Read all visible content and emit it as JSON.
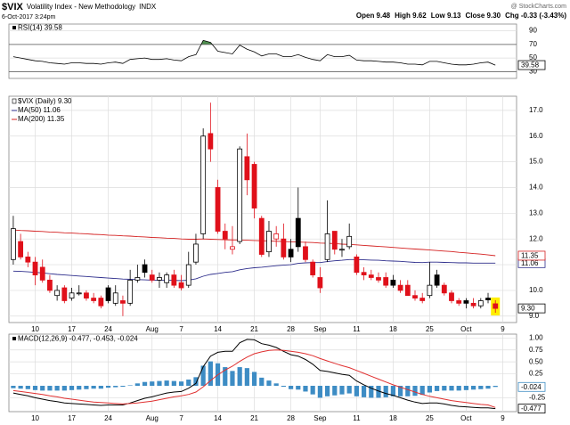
{
  "header": {
    "symbol": "$VIX",
    "name": "Volatility Index - New Methodology",
    "exchange": "INDX",
    "timestamp": "6-Oct-2017 3:24pm",
    "quote": [
      "Open 9.48",
      "High 9.62",
      "Low 9.13",
      "Close 9.30",
      "Chg -0.33 (-3.43%)"
    ],
    "credit": "@ StockCharts.com"
  },
  "chart_data": [
    {
      "type": "rsi",
      "title": "RSI(14) 39.58",
      "color": "#000000",
      "fill_color": "#4f8f4f",
      "overbought": 70,
      "oversold": 30,
      "last_label": "39.58",
      "values": [
        52,
        50,
        48,
        46,
        45,
        43,
        42,
        41,
        43,
        43,
        42,
        42,
        41,
        43,
        44,
        42,
        48,
        49,
        50,
        48,
        48,
        49,
        47,
        46,
        52,
        55,
        76,
        73,
        60,
        58,
        56,
        69,
        63,
        59,
        53,
        56,
        56,
        52,
        52,
        55,
        51,
        48,
        46,
        55,
        52,
        52,
        54,
        47,
        46,
        46,
        45,
        44,
        44,
        43,
        41,
        41,
        40,
        45,
        45,
        43,
        41,
        40,
        40,
        41,
        43,
        44,
        39.58
      ],
      "ylim": [
        20,
        100
      ],
      "yticks": [
        30,
        50,
        70,
        90
      ],
      "xlim": [
        -0.6,
        68.9
      ],
      "grid": true
    },
    {
      "type": "candlestick",
      "name": "$VIX (Daily) 9.30",
      "up_color": "#000000",
      "down_color": "#e0101a",
      "last_label": "9.30",
      "open": [
        11.2,
        11.9,
        11.3,
        11.1,
        10.9,
        10.4,
        9.8,
        10.1,
        9.7,
        9.9,
        9.9,
        9.7,
        9.7,
        10.1,
        9.5,
        9.6,
        9.5,
        10.4,
        11.0,
        10.6,
        10.4,
        10.3,
        10.6,
        10.3,
        10.2,
        11.1,
        12.2,
        16.1,
        14.0,
        12.3,
        11.6,
        11.9,
        15.2,
        14.9,
        12.8,
        11.5,
        12.0,
        12.0,
        11.6,
        12.8,
        11.7,
        11.1,
        10.5,
        11.2,
        12.3,
        11.6,
        11.7,
        11.3,
        10.7,
        10.6,
        10.5,
        10.5,
        10.4,
        10.2,
        10.2,
        9.8,
        9.7,
        9.8,
        10.6,
        10.2,
        9.9,
        9.6,
        9.6,
        9.5,
        9.4,
        9.7,
        9.48
      ],
      "high": [
        12.9,
        12.2,
        11.5,
        11.3,
        11.2,
        10.6,
        10.2,
        10.2,
        10.1,
        10.2,
        10.0,
        9.9,
        9.8,
        10.2,
        10.2,
        9.8,
        10.8,
        11.0,
        11.2,
        10.8,
        10.7,
        10.7,
        10.8,
        10.6,
        11.5,
        12.2,
        16.3,
        17.3,
        14.3,
        12.6,
        12.5,
        15.6,
        16.1,
        15.0,
        12.9,
        12.7,
        12.5,
        12.6,
        12.0,
        14.0,
        11.9,
        11.2,
        10.9,
        13.5,
        12.3,
        12.0,
        12.6,
        11.4,
        10.9,
        10.8,
        10.7,
        10.7,
        10.6,
        10.4,
        10.4,
        10.0,
        9.9,
        11.1,
        10.8,
        10.3,
        10.0,
        9.7,
        9.7,
        9.7,
        9.7,
        9.9,
        9.62
      ],
      "low": [
        11.0,
        11.2,
        10.9,
        10.2,
        10.3,
        9.9,
        9.6,
        9.5,
        9.6,
        9.8,
        9.6,
        9.5,
        9.3,
        9.5,
        9.4,
        9.0,
        9.4,
        10.3,
        10.5,
        10.3,
        10.1,
        10.1,
        10.1,
        10.0,
        10.1,
        11.0,
        12.0,
        15.0,
        12.2,
        11.6,
        11.4,
        11.8,
        13.7,
        12.8,
        11.3,
        11.3,
        11.7,
        11.2,
        11.1,
        11.5,
        11.1,
        10.5,
        9.9,
        11.1,
        11.4,
        11.3,
        11.6,
        10.6,
        10.4,
        10.4,
        10.3,
        10.1,
        10.1,
        9.9,
        9.8,
        9.6,
        9.5,
        9.7,
        10.1,
        9.8,
        9.5,
        9.4,
        9.3,
        9.3,
        9.3,
        9.5,
        9.13
      ],
      "close": [
        12.4,
        11.3,
        11.1,
        10.6,
        10.4,
        10.0,
        10.0,
        9.6,
        9.9,
        9.9,
        9.7,
        9.6,
        9.4,
        9.6,
        9.9,
        9.5,
        10.4,
        10.5,
        10.7,
        10.4,
        10.5,
        10.6,
        10.2,
        10.1,
        11.0,
        11.8,
        16.0,
        15.5,
        12.3,
        12.0,
        11.7,
        15.5,
        14.3,
        13.2,
        11.4,
        12.3,
        12.2,
        11.3,
        11.3,
        11.7,
        11.2,
        10.6,
        10.1,
        12.2,
        11.6,
        11.6,
        12.1,
        10.7,
        10.6,
        10.5,
        10.4,
        10.2,
        10.2,
        10.0,
        9.8,
        9.7,
        9.6,
        10.2,
        10.2,
        9.9,
        9.6,
        9.5,
        9.5,
        9.4,
        9.6,
        9.63,
        9.3
      ],
      "series": [
        {
          "name": "MA(50) 11.06",
          "color": "#2e2e8c",
          "last_label": "11.06",
          "values": [
            10.75,
            10.74,
            10.72,
            10.7,
            10.68,
            10.65,
            10.62,
            10.6,
            10.58,
            10.56,
            10.54,
            10.52,
            10.5,
            10.48,
            10.46,
            10.44,
            10.43,
            10.42,
            10.41,
            10.4,
            10.4,
            10.4,
            10.39,
            10.38,
            10.4,
            10.45,
            10.55,
            10.62,
            10.66,
            10.7,
            10.73,
            10.8,
            10.85,
            10.88,
            10.9,
            10.93,
            10.96,
            10.98,
            11.0,
            11.05,
            11.07,
            11.08,
            11.08,
            11.12,
            11.15,
            11.17,
            11.2,
            11.2,
            11.19,
            11.18,
            11.17,
            11.15,
            11.14,
            11.13,
            11.11,
            11.09,
            11.08,
            11.1,
            11.1,
            11.09,
            11.08,
            11.07,
            11.07,
            11.06,
            11.06,
            11.06,
            11.06
          ]
        },
        {
          "name": "MA(200) 11.35",
          "color": "#d42020",
          "last_label": "11.35",
          "values": [
            12.35,
            12.33,
            12.32,
            12.3,
            12.29,
            12.27,
            12.26,
            12.24,
            12.23,
            12.21,
            12.2,
            12.18,
            12.17,
            12.15,
            12.14,
            12.12,
            12.11,
            12.09,
            12.08,
            12.06,
            12.05,
            12.03,
            12.02,
            12.0,
            11.99,
            11.99,
            12.0,
            11.99,
            11.98,
            11.97,
            11.96,
            11.96,
            11.95,
            11.94,
            11.93,
            11.92,
            11.91,
            11.9,
            11.89,
            11.88,
            11.87,
            11.86,
            11.84,
            11.83,
            11.82,
            11.8,
            11.79,
            11.77,
            11.75,
            11.73,
            11.71,
            11.69,
            11.67,
            11.65,
            11.63,
            11.61,
            11.59,
            11.57,
            11.55,
            11.53,
            11.51,
            11.48,
            11.46,
            11.43,
            11.41,
            11.38,
            11.35
          ]
        }
      ],
      "ylim": [
        8.75,
        17.55
      ],
      "yticks": [
        {
          "value": 17,
          "label": "17.0"
        },
        {
          "value": 16,
          "label": "16.0"
        },
        {
          "value": 15,
          "label": "15.0"
        },
        {
          "value": 14,
          "label": "14.0"
        },
        {
          "value": 13,
          "label": "13.0"
        },
        {
          "value": 12,
          "label": "12.0"
        },
        {
          "value": 11,
          "label": "11.0"
        },
        {
          "value": 10,
          "label": "10.0"
        },
        {
          "value": 9,
          "label": "9.0"
        }
      ],
      "xlim": [
        -0.6,
        68.9
      ],
      "xticks": [
        {
          "value": 3,
          "label": "10"
        },
        {
          "value": 8,
          "label": "17"
        },
        {
          "value": 13,
          "label": "24"
        },
        {
          "value": 19,
          "label": "Aug"
        },
        {
          "value": 23,
          "label": "7"
        },
        {
          "value": 28,
          "label": "14"
        },
        {
          "value": 33,
          "label": "21"
        },
        {
          "value": 38,
          "label": "28"
        },
        {
          "value": 42,
          "label": "Sep"
        },
        {
          "value": 47,
          "label": "11"
        },
        {
          "value": 52,
          "label": "18"
        },
        {
          "value": 57,
          "label": "25"
        },
        {
          "value": 62,
          "label": "Oct"
        },
        {
          "value": 67,
          "label": "9"
        }
      ],
      "grid": true
    },
    {
      "type": "macd",
      "title": "MACD(12,26,9) -0.477, -0.453, -0.024",
      "series": [
        {
          "kind": "histogram",
          "color": "#3d8cc4",
          "last_label": "-0.024",
          "values": [
            -0.05,
            -0.06,
            -0.07,
            -0.09,
            -0.1,
            -0.1,
            -0.1,
            -0.1,
            -0.09,
            -0.08,
            -0.07,
            -0.06,
            -0.06,
            -0.04,
            -0.03,
            -0.02,
            0.01,
            0.05,
            0.08,
            0.09,
            0.1,
            0.11,
            0.1,
            0.09,
            0.13,
            0.18,
            0.42,
            0.51,
            0.47,
            0.39,
            0.31,
            0.39,
            0.37,
            0.29,
            0.17,
            0.11,
            0.05,
            -0.02,
            -0.07,
            -0.08,
            -0.12,
            -0.18,
            -0.25,
            -0.22,
            -0.2,
            -0.18,
            -0.16,
            -0.22,
            -0.24,
            -0.25,
            -0.25,
            -0.24,
            -0.22,
            -0.22,
            -0.22,
            -0.21,
            -0.19,
            -0.14,
            -0.11,
            -0.1,
            -0.1,
            -0.1,
            -0.09,
            -0.08,
            -0.07,
            -0.06,
            -0.024
          ]
        },
        {
          "kind": "line",
          "color": "#000000",
          "last_label": "-0.477",
          "values": [
            -0.15,
            -0.18,
            -0.21,
            -0.25,
            -0.28,
            -0.31,
            -0.33,
            -0.36,
            -0.37,
            -0.38,
            -0.39,
            -0.4,
            -0.41,
            -0.4,
            -0.4,
            -0.4,
            -0.36,
            -0.31,
            -0.26,
            -0.23,
            -0.19,
            -0.15,
            -0.13,
            -0.12,
            -0.05,
            0.05,
            0.4,
            0.62,
            0.7,
            0.72,
            0.72,
            0.9,
            0.97,
            0.96,
            0.88,
            0.85,
            0.8,
            0.72,
            0.65,
            0.62,
            0.55,
            0.45,
            0.32,
            0.3,
            0.27,
            0.24,
            0.22,
            0.1,
            0.02,
            -0.05,
            -0.11,
            -0.16,
            -0.2,
            -0.25,
            -0.3,
            -0.34,
            -0.37,
            -0.36,
            -0.36,
            -0.38,
            -0.41,
            -0.43,
            -0.44,
            -0.45,
            -0.46,
            -0.46,
            -0.477
          ]
        },
        {
          "kind": "line",
          "color": "#e03030",
          "values": [
            -0.1,
            -0.12,
            -0.14,
            -0.16,
            -0.18,
            -0.21,
            -0.23,
            -0.26,
            -0.28,
            -0.3,
            -0.32,
            -0.34,
            -0.35,
            -0.36,
            -0.37,
            -0.38,
            -0.37,
            -0.36,
            -0.34,
            -0.32,
            -0.29,
            -0.26,
            -0.23,
            -0.21,
            -0.18,
            -0.13,
            -0.02,
            0.11,
            0.23,
            0.33,
            0.41,
            0.51,
            0.6,
            0.67,
            0.71,
            0.74,
            0.75,
            0.74,
            0.72,
            0.7,
            0.67,
            0.63,
            0.57,
            0.52,
            0.47,
            0.42,
            0.38,
            0.32,
            0.26,
            0.2,
            0.14,
            0.08,
            0.02,
            -0.03,
            -0.08,
            -0.13,
            -0.18,
            -0.22,
            -0.25,
            -0.28,
            -0.31,
            -0.33,
            -0.35,
            -0.37,
            -0.39,
            -0.4,
            -0.453
          ]
        }
      ],
      "ylim": [
        -0.54,
        1.08
      ],
      "yticks": [
        {
          "value": 1,
          "label": "1.00"
        },
        {
          "value": 0.75,
          "label": "0.75"
        },
        {
          "value": 0.5,
          "label": "0.50"
        },
        {
          "value": 0.25,
          "label": "0.25"
        },
        {
          "value": -0.25,
          "label": "-0.25"
        }
      ],
      "xlim": [
        -0.6,
        68.9
      ],
      "xticks": [
        {
          "value": 3,
          "label": "10"
        },
        {
          "value": 8,
          "label": "17"
        },
        {
          "value": 13,
          "label": "24"
        },
        {
          "value": 19,
          "label": "Aug"
        },
        {
          "value": 23,
          "label": "7"
        },
        {
          "value": 28,
          "label": "14"
        },
        {
          "value": 33,
          "label": "21"
        },
        {
          "value": 38,
          "label": "28"
        },
        {
          "value": 42,
          "label": "Sep"
        },
        {
          "value": 47,
          "label": "11"
        },
        {
          "value": 52,
          "label": "18"
        },
        {
          "value": 57,
          "label": "25"
        },
        {
          "value": 62,
          "label": "Oct"
        },
        {
          "value": 67,
          "label": "9"
        }
      ],
      "grid": true
    }
  ]
}
